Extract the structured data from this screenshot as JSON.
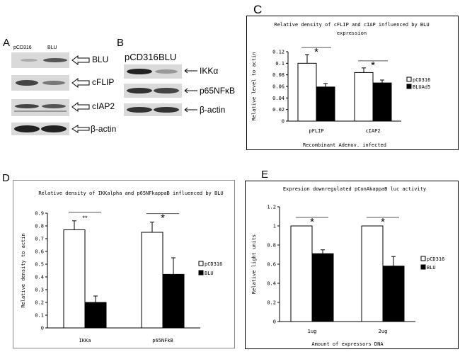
{
  "figure": {
    "panels": {
      "A": {
        "letter": "A",
        "lane_labels": [
          "pCD316",
          "BLU"
        ],
        "blot_labels": [
          "BLU",
          "cFLIP",
          "cIAP2",
          "β-actin"
        ]
      },
      "B": {
        "letter": "B",
        "lane_labels": [
          "pCD316",
          "BLU"
        ],
        "blot_labels": [
          "IKKα",
          "p65NFκB",
          "β-actin"
        ]
      },
      "C": {
        "letter": "C"
      },
      "D": {
        "letter": "D"
      },
      "E": {
        "letter": "E"
      }
    }
  },
  "chart_data": [
    {
      "id": "C",
      "type": "bar",
      "title": "Relative density of cFLIP and cIAP influenced by BLU",
      "title2": "expression",
      "xlabel": "Recombinant Adenov. infected",
      "ylabel": "Relative level to actin",
      "categories": [
        "pFLIP",
        "cIAP2"
      ],
      "series": [
        {
          "name": "pCD316",
          "values": [
            0.1,
            0.084
          ],
          "errors": [
            0.015,
            0.008
          ],
          "color": "#ffffff"
        },
        {
          "name": "BLUAd5",
          "values": [
            0.059,
            0.066
          ],
          "errors": [
            0.006,
            0.005
          ],
          "color": "#000000"
        }
      ],
      "ylim": [
        0,
        0.12
      ],
      "yticks": [
        0,
        0.02,
        0.04,
        0.06,
        0.08,
        0.1,
        0.12
      ],
      "ytick_labels": [
        "0",
        "0.02",
        "0.04",
        "0.06",
        "0.08",
        "0.1",
        "0.12"
      ],
      "significance": [
        "*",
        "*"
      ],
      "legend": "right"
    },
    {
      "id": "D",
      "type": "bar",
      "title": "Relative density of IKKalpha and p65NFkappaB influenced by BLU",
      "xlabel": "",
      "ylabel": "Relative density to actin",
      "categories": [
        "IKKa",
        "p65NFkB"
      ],
      "series": [
        {
          "name": "pCD316",
          "values": [
            0.77,
            0.75
          ],
          "errors": [
            0.07,
            0.08
          ],
          "color": "#ffffff"
        },
        {
          "name": "BLU",
          "values": [
            0.2,
            0.42
          ],
          "errors": [
            0.05,
            0.13
          ],
          "color": "#000000"
        }
      ],
      "ylim": [
        0,
        0.9
      ],
      "yticks": [
        0,
        0.1,
        0.2,
        0.3,
        0.4,
        0.5,
        0.6,
        0.7,
        0.8,
        0.9
      ],
      "ytick_labels": [
        "0",
        "0.1",
        "0.2",
        "0.3",
        "0.4",
        "0.5",
        "0.6",
        "0.7",
        "0.8",
        "0.9"
      ],
      "significance": [
        "**",
        "*"
      ],
      "legend": "right"
    },
    {
      "id": "E",
      "type": "bar",
      "title": "Expresion downregulated pConAkappaB luc activity",
      "xlabel": "Amount of expressors DNA",
      "ylabel": "Relative light units",
      "categories": [
        "1ug",
        "2ug"
      ],
      "series": [
        {
          "name": "pCD316",
          "values": [
            1.0,
            1.0
          ],
          "errors": [
            0,
            0
          ],
          "color": "#ffffff"
        },
        {
          "name": "BLU",
          "values": [
            0.71,
            0.58
          ],
          "errors": [
            0.04,
            0.1
          ],
          "color": "#000000"
        }
      ],
      "ylim": [
        0,
        1.2
      ],
      "yticks": [
        0,
        0.2,
        0.4,
        0.6,
        0.8,
        1,
        1.2
      ],
      "ytick_labels": [
        "0",
        "0.2",
        "0.4",
        "0.6",
        "0.8",
        "1",
        "1.2"
      ],
      "significance": [
        "*",
        "*"
      ],
      "legend": "right"
    }
  ]
}
